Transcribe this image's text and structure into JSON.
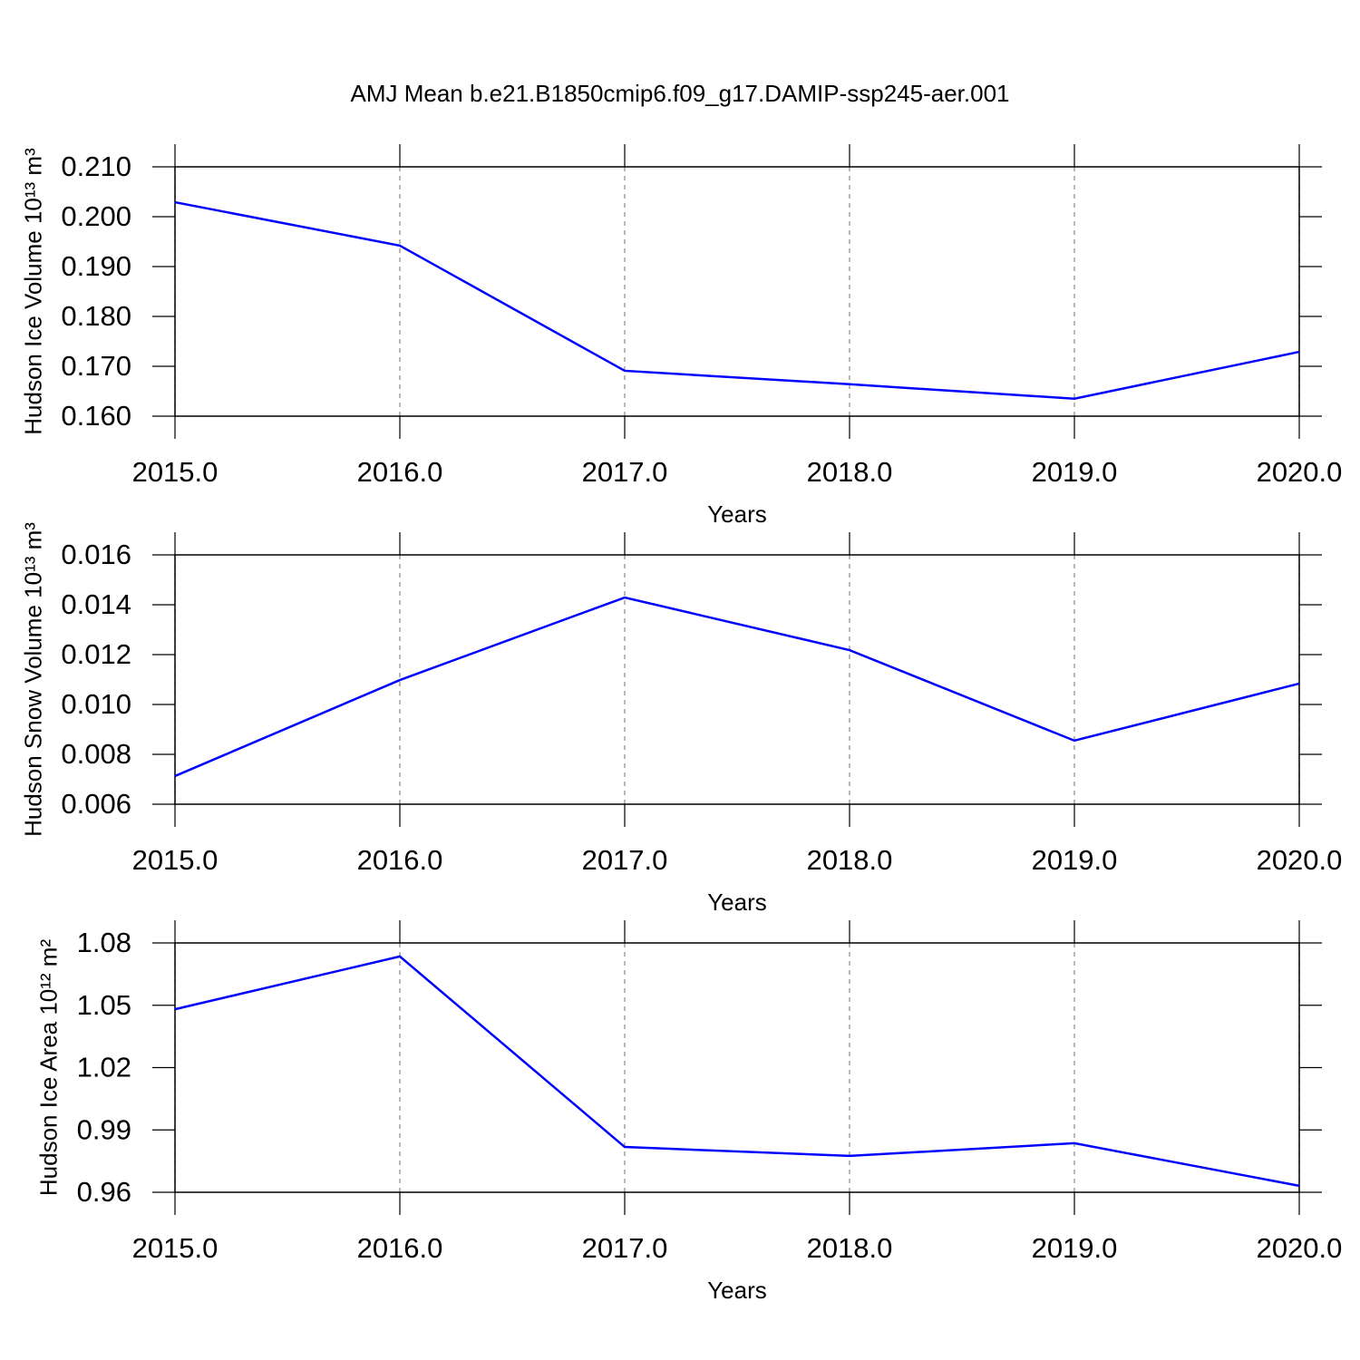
{
  "title": "AMJ Mean b.e21.B1850cmip6.f09_g17.DAMIP-ssp245-aer.001",
  "chart_data": [
    {
      "type": "line",
      "xlabel": "Years",
      "ylabel": "Hudson Ice Volume 10¹³ m³",
      "x": [
        2015,
        2016,
        2017,
        2018,
        2019,
        2020
      ],
      "series": [
        {
          "color": "#0000ff",
          "values": [
            0.2029,
            0.1942,
            0.1691,
            0.1664,
            0.1635,
            0.1729
          ]
        }
      ],
      "xlim": [
        2015,
        2020
      ],
      "xticks": [
        {
          "value": 2015,
          "label": "2015.0"
        },
        {
          "value": 2016,
          "label": "2016.0"
        },
        {
          "value": 2017,
          "label": "2017.0"
        },
        {
          "value": 2018,
          "label": "2018.0"
        },
        {
          "value": 2019,
          "label": "2019.0"
        },
        {
          "value": 2020,
          "label": "2020.0"
        }
      ],
      "ylim": [
        0.16,
        0.21
      ],
      "yticks": [
        {
          "value": 0.16,
          "label": "0.160"
        },
        {
          "value": 0.17,
          "label": "0.170"
        },
        {
          "value": 0.18,
          "label": "0.180"
        },
        {
          "value": 0.19,
          "label": "0.190"
        },
        {
          "value": 0.2,
          "label": "0.200"
        },
        {
          "value": 0.21,
          "label": "0.210"
        }
      ],
      "grid": true
    },
    {
      "type": "line",
      "xlabel": "Years",
      "ylabel": "Hudson Snow Volume 10¹³ m³",
      "x": [
        2015,
        2016,
        2017,
        2018,
        2019,
        2020
      ],
      "series": [
        {
          "color": "#0000ff",
          "values": [
            0.00713,
            0.01098,
            0.01429,
            0.01218,
            0.00855,
            0.01084
          ]
        }
      ],
      "xlim": [
        2015,
        2020
      ],
      "xticks": [
        {
          "value": 2015,
          "label": "2015.0"
        },
        {
          "value": 2016,
          "label": "2016.0"
        },
        {
          "value": 2017,
          "label": "2017.0"
        },
        {
          "value": 2018,
          "label": "2018.0"
        },
        {
          "value": 2019,
          "label": "2019.0"
        },
        {
          "value": 2020,
          "label": "2020.0"
        }
      ],
      "ylim": [
        0.006,
        0.016
      ],
      "yticks": [
        0.006,
        0.008,
        {
          "value": 0.01,
          "label": "0.010"
        },
        0.012,
        0.014,
        0.016
      ],
      "grid": true
    },
    {
      "type": "line",
      "xlabel": "Years",
      "ylabel": "Hudson Ice Area 10¹² m²",
      "x": [
        2015,
        2016,
        2017,
        2018,
        2019,
        2020
      ],
      "series": [
        {
          "color": "#0000ff",
          "values": [
            1.0481,
            1.0735,
            0.9818,
            0.9775,
            0.9836,
            0.9631
          ]
        }
      ],
      "xlim": [
        2015,
        2020
      ],
      "xticks": [
        {
          "value": 2015,
          "label": "2015.0"
        },
        {
          "value": 2016,
          "label": "2016.0"
        },
        {
          "value": 2017,
          "label": "2017.0"
        },
        {
          "value": 2018,
          "label": "2018.0"
        },
        {
          "value": 2019,
          "label": "2019.0"
        },
        {
          "value": 2020,
          "label": "2020.0"
        }
      ],
      "ylim": [
        0.96,
        1.08
      ],
      "yticks": [
        0.96,
        0.99,
        1.02,
        1.05,
        1.08
      ],
      "grid": true
    }
  ]
}
